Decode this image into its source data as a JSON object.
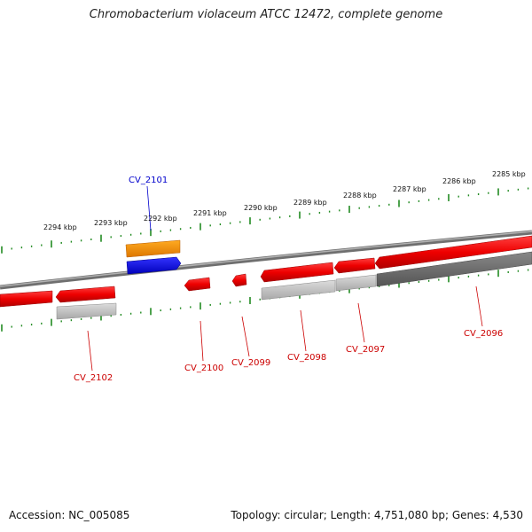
{
  "title": "Chromobacterium violaceum ATCC 12472, complete genome",
  "footer": {
    "accession": "Accession: NC_005085",
    "summary": "Topology: circular; Length: 4,751,080 bp; Genes: 4,530"
  },
  "colors": {
    "forward_gene": "#ff0000",
    "reverse_gene": "#ff0000",
    "highlight_orange": "#ff9900",
    "highlight_blue": "#0000ee",
    "ruler": "#228b22",
    "backbone": "#808080",
    "label_red": "#cc0000",
    "label_blue": "#0000cc"
  },
  "ruler_labels": [
    {
      "id": "r2294",
      "text": "2294 kbp"
    },
    {
      "id": "r2293",
      "text": "2293 kbp"
    },
    {
      "id": "r2292",
      "text": "2292 kbp"
    },
    {
      "id": "r2291",
      "text": "2291 kbp"
    },
    {
      "id": "r2290",
      "text": "2290 kbp"
    },
    {
      "id": "r2289",
      "text": "2289 kbp"
    },
    {
      "id": "r2288",
      "text": "2288 kbp"
    },
    {
      "id": "r2287",
      "text": "2287 kbp"
    },
    {
      "id": "r2286",
      "text": "2286 kbp"
    },
    {
      "id": "r2285",
      "text": "2285 kbp"
    }
  ],
  "gene_labels": [
    {
      "id": "CV_2101",
      "text": "CV_2101",
      "color": "blue"
    },
    {
      "id": "CV_2102",
      "text": "CV_2102",
      "color": "red"
    },
    {
      "id": "CV_2100",
      "text": "CV_2100",
      "color": "red"
    },
    {
      "id": "CV_2099",
      "text": "CV_2099",
      "color": "red"
    },
    {
      "id": "CV_2098",
      "text": "CV_2098",
      "color": "red"
    },
    {
      "id": "CV_2097",
      "text": "CV_2097",
      "color": "red"
    },
    {
      "id": "CV_2096",
      "text": "CV_2096",
      "color": "red"
    }
  ]
}
